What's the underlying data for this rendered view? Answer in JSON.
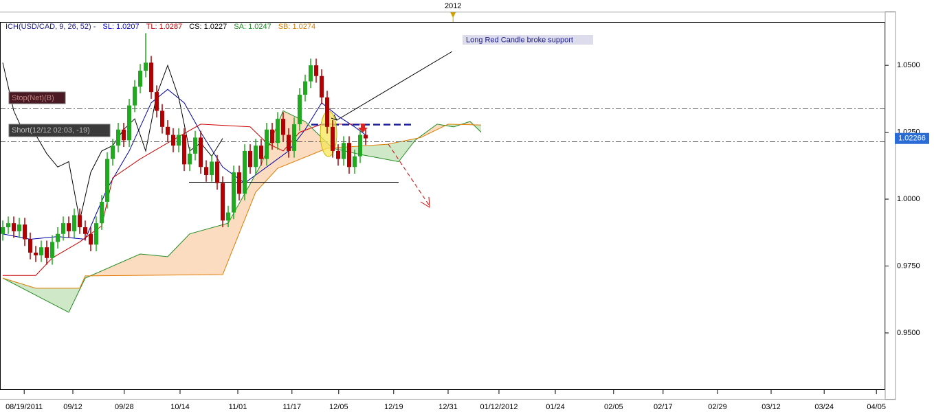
{
  "chart_data": {
    "type": "candlestick",
    "legend": [
      {
        "text": "ICH(USD/CAD, 9, 26, 52) -",
        "color": "#1a1a8c"
      },
      {
        "text": "SL: 1.0207",
        "color": "#0000cc"
      },
      {
        "text": "TL: 1.0287",
        "color": "#cc0000"
      },
      {
        "text": "CS: 1.0227",
        "color": "#000000"
      },
      {
        "text": "SA: 1.0247",
        "color": "#228b22"
      },
      {
        "text": "SB: 1.0274",
        "color": "#e07b00"
      }
    ],
    "annotations": [
      "Long Red Candle broke support",
      "Stop(Net)(B)",
      "Short(12/12 02:03, -19)"
    ],
    "year_marker": {
      "value": 81.9,
      "label": "2012"
    },
    "last_price": 1.02266,
    "up_color": "#1faa1f",
    "down_color": "#b30000",
    "cloud_up_color": "#fcdcc0",
    "cloud_down_color": "#cfe8c8",
    "x": [
      0,
      1,
      2,
      3,
      4,
      5,
      6,
      7,
      8,
      9,
      10,
      11,
      12,
      13,
      14,
      15,
      16,
      17,
      18,
      19,
      20,
      21,
      22,
      23,
      24,
      25,
      26,
      27,
      28,
      29,
      30,
      31,
      32,
      33,
      34,
      35,
      36,
      37,
      38,
      39,
      40,
      41,
      42,
      43,
      44,
      45,
      46,
      47,
      48,
      49,
      50,
      51,
      52,
      53,
      54,
      55,
      56,
      57,
      58,
      59,
      60,
      61,
      62,
      63,
      64,
      65,
      66
    ],
    "open": [
      0.987,
      0.9895,
      0.991,
      0.988,
      0.9905,
      0.985,
      0.98,
      0.979,
      0.982,
      0.978,
      0.984,
      0.987,
      0.991,
      0.988,
      0.994,
      0.9895,
      0.987,
      0.983,
      0.991,
      0.999,
      1.015,
      1.02,
      1.026,
      1.022,
      1.035,
      1.042,
      1.048,
      1.051,
      1.04,
      1.033,
      1.027,
      1.024,
      1.02,
      1.024,
      1.013,
      1.017,
      1.023,
      1.012,
      1.009,
      1.014,
      1.006,
      0.992,
      0.995,
      1.01,
      1.002,
      1.018,
      1.012,
      1.02,
      1.015,
      1.026,
      1.021,
      1.03,
      1.024,
      1.018,
      1.028,
      1.039,
      1.044,
      1.05,
      1.046,
      1.038,
      1.027,
      1.018,
      1.015,
      1.021,
      1.012,
      1.016,
      1.024
    ],
    "high": [
      0.992,
      0.9935,
      0.9935,
      0.993,
      0.993,
      0.9875,
      0.9825,
      0.9845,
      0.9845,
      0.9865,
      0.9895,
      0.9935,
      0.9935,
      0.9965,
      0.9965,
      0.992,
      0.9895,
      0.9935,
      1.0015,
      1.0175,
      1.0225,
      1.0285,
      1.0285,
      1.0375,
      1.0445,
      1.0505,
      1.062,
      1.0535,
      1.0425,
      1.0355,
      1.0295,
      1.0265,
      1.0265,
      1.0265,
      1.0195,
      1.0255,
      1.0255,
      1.0145,
      1.0165,
      1.0165,
      1.0085,
      0.9975,
      1.0125,
      1.0125,
      1.0205,
      1.0205,
      1.0225,
      1.0225,
      1.0285,
      1.0285,
      1.0325,
      1.0325,
      1.0265,
      1.0305,
      1.0415,
      1.0465,
      1.0525,
      1.0525,
      1.0485,
      1.0405,
      1.0295,
      1.0205,
      1.0235,
      1.0235,
      1.0185,
      1.0265,
      1.0265
    ],
    "low": [
      0.9845,
      0.987,
      0.9855,
      0.9855,
      0.9825,
      0.9775,
      0.9765,
      0.9765,
      0.9755,
      0.9755,
      0.9815,
      0.9845,
      0.9855,
      0.9855,
      0.987,
      0.9845,
      0.9805,
      0.9805,
      0.9885,
      0.9965,
      1.0125,
      1.0175,
      1.0195,
      1.0195,
      1.0325,
      1.0395,
      1.0455,
      1.0375,
      1.0305,
      1.0245,
      1.0215,
      1.0175,
      1.0175,
      1.0105,
      1.0105,
      1.0145,
      1.0095,
      1.0065,
      1.0065,
      1.0035,
      0.9895,
      0.9895,
      0.9925,
      0.9995,
      0.9995,
      1.0095,
      1.0095,
      1.0125,
      1.0125,
      1.0185,
      1.0185,
      1.0215,
      1.0155,
      1.0155,
      1.0255,
      1.0365,
      1.0415,
      1.0435,
      1.0355,
      1.0245,
      1.0155,
      1.0125,
      1.0125,
      1.0095,
      1.0095,
      1.0135,
      1.0202
    ],
    "close": [
      0.9895,
      0.991,
      0.988,
      0.9905,
      0.985,
      0.98,
      0.979,
      0.982,
      0.978,
      0.984,
      0.987,
      0.991,
      0.988,
      0.994,
      0.9895,
      0.987,
      0.983,
      0.991,
      0.999,
      1.015,
      1.02,
      1.026,
      1.022,
      1.035,
      1.042,
      1.048,
      1.051,
      1.04,
      1.033,
      1.027,
      1.024,
      1.02,
      1.024,
      1.013,
      1.017,
      1.023,
      1.012,
      1.009,
      1.014,
      1.006,
      0.992,
      0.995,
      1.01,
      1.002,
      1.018,
      1.012,
      1.02,
      1.015,
      1.026,
      1.021,
      1.03,
      1.024,
      1.018,
      1.028,
      1.039,
      1.044,
      1.05,
      1.046,
      1.038,
      1.027,
      1.018,
      1.015,
      1.021,
      1.012,
      1.016,
      1.024,
      1.0227
    ],
    "series": [
      {
        "color": "#0000aa",
        "x": [
          0,
          5,
          10,
          15,
          19,
          23,
          27,
          30,
          33,
          36,
          40,
          44,
          48,
          52,
          55,
          58,
          61,
          64,
          66
        ],
        "values": [
          0.987,
          0.985,
          0.986,
          0.985,
          1.004,
          1.018,
          1.036,
          1.041,
          1.036,
          1.025,
          1.012,
          1.006,
          1.012,
          1.018,
          1.026,
          1.036,
          1.031,
          1.027,
          1.024
        ]
      },
      {
        "color": "#cc0000",
        "x": [
          0,
          6,
          9,
          14,
          18,
          20,
          25,
          30,
          36,
          45,
          48,
          51,
          54,
          58,
          66
        ],
        "values": [
          0.9715,
          0.9715,
          0.978,
          0.984,
          0.99,
          1.008,
          1.015,
          1.021,
          1.028,
          1.027,
          1.021,
          1.018,
          1.025,
          1.028,
          1.028
        ]
      },
      {
        "color": "#000000",
        "x": [
          0,
          2,
          4,
          6,
          8,
          10,
          12,
          14,
          16,
          18,
          20,
          22,
          24,
          26,
          28,
          30,
          32,
          34,
          36,
          38,
          40
        ],
        "values": [
          1.051,
          1.033,
          1.024,
          1.024,
          1.017,
          1.012,
          1.014,
          0.992,
          1.01,
          1.018,
          1.02,
          1.026,
          1.03,
          1.018,
          1.039,
          1.05,
          1.038,
          1.018,
          1.021,
          1.016,
          1.0227
        ]
      },
      {
        "color": "#228b22",
        "x": [
          0,
          12,
          15,
          25,
          30,
          34,
          41,
          47,
          51,
          55,
          60,
          65,
          72,
          75,
          79,
          82,
          85,
          87
        ],
        "values": [
          0.9705,
          0.9577,
          0.9705,
          0.9795,
          0.9785,
          0.987,
          0.991,
          1.013,
          1.033,
          1.029,
          1.019,
          1.0167,
          1.014,
          1.022,
          1.028,
          1.027,
          1.029,
          1.025
        ]
      },
      {
        "color": "#e07b00",
        "x": [
          0,
          6,
          14,
          15,
          40,
          46,
          50,
          59,
          70,
          76,
          81,
          87
        ],
        "values": [
          0.9705,
          0.9667,
          0.9667,
          0.9713,
          0.9718,
          1.0026,
          1.0115,
          1.019,
          1.0205,
          1.023,
          1.028,
          1.0277
        ]
      }
    ],
    "xlim": [
      -0.5,
      160.5
    ],
    "ylim": [
      0.9287,
      1.0662
    ],
    "yticks": [
      {
        "value": 0.95,
        "label": "0.9500"
      },
      {
        "value": 0.975,
        "label": "0.9750"
      },
      {
        "value": 1.0,
        "label": "1.0000"
      },
      {
        "value": 1.025,
        "label": "1.0250"
      },
      {
        "value": 1.05,
        "label": "1.0500"
      }
    ],
    "xticks": [
      {
        "value": 3.9,
        "label": "08/19/2011"
      },
      {
        "value": 12.75,
        "label": "09/12"
      },
      {
        "value": 22.1,
        "label": "09/28"
      },
      {
        "value": 32.25,
        "label": "10/14"
      },
      {
        "value": 42.75,
        "label": "11/01"
      },
      {
        "value": 52.6,
        "label": "11/17"
      },
      {
        "value": 61.1,
        "label": "12/05"
      },
      {
        "value": 71.1,
        "label": "12/19"
      },
      {
        "value": 81,
        "label": "12/31"
      },
      {
        "value": 90.25,
        "label": "01/12/2012"
      },
      {
        "value": 100.5,
        "label": "01/24"
      },
      {
        "value": 111.1,
        "label": "02/05"
      },
      {
        "value": 120.1,
        "label": "02/17"
      },
      {
        "value": 130,
        "label": "02/29"
      },
      {
        "value": 139.75,
        "label": "03/12"
      },
      {
        "value": 149.4,
        "label": "03/24"
      },
      {
        "value": 158.9,
        "label": "04/05"
      }
    ]
  }
}
